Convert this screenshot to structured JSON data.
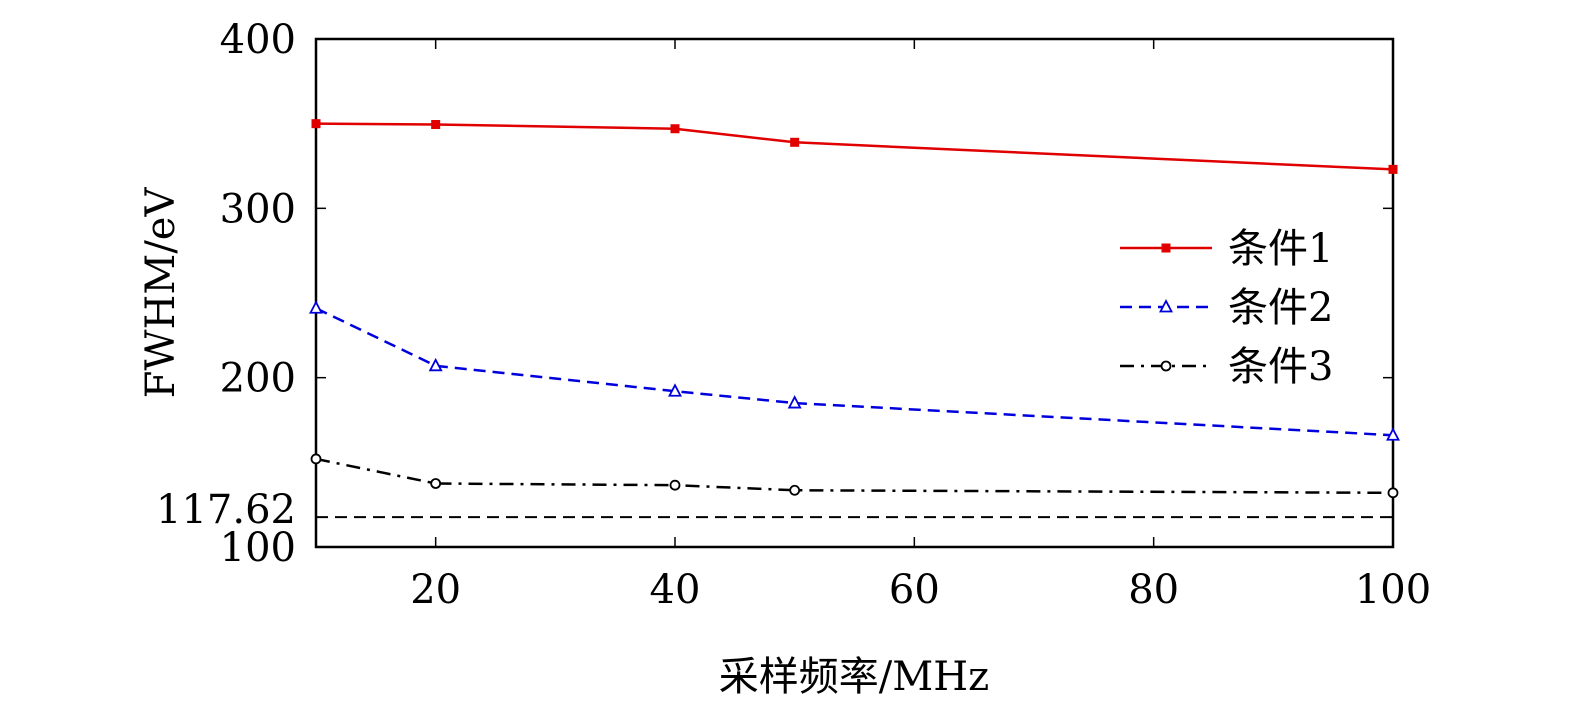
{
  "chart_data": {
    "type": "line",
    "x": [
      10,
      20,
      40,
      50,
      100
    ],
    "x_ticks": [
      20,
      40,
      60,
      80,
      100
    ],
    "y_ticks": [
      100,
      200,
      300,
      400
    ],
    "xlim": [
      10,
      100
    ],
    "ylim": [
      100,
      400
    ],
    "xlabel": "采样频率/MHz",
    "ylabel": "FWHM/eV",
    "legend_position": "center-right",
    "series": [
      {
        "name": "条件1",
        "color": "#e00000",
        "dash": "solid",
        "marker": "square",
        "values": [
          350,
          349.5,
          347,
          339,
          323
        ]
      },
      {
        "name": "条件2",
        "color": "#0000dd",
        "dash": "dashed",
        "marker": "triangle",
        "values": [
          241,
          207,
          192,
          185,
          166
        ]
      },
      {
        "name": "条件3",
        "color": "#000000",
        "dash": "dashdot",
        "marker": "circle",
        "values": [
          152,
          137.5,
          136.5,
          133.5,
          132
        ]
      }
    ],
    "reference_line": {
      "value": 117.62,
      "label": "117.62",
      "color": "#000000",
      "dash": "dashed"
    }
  }
}
